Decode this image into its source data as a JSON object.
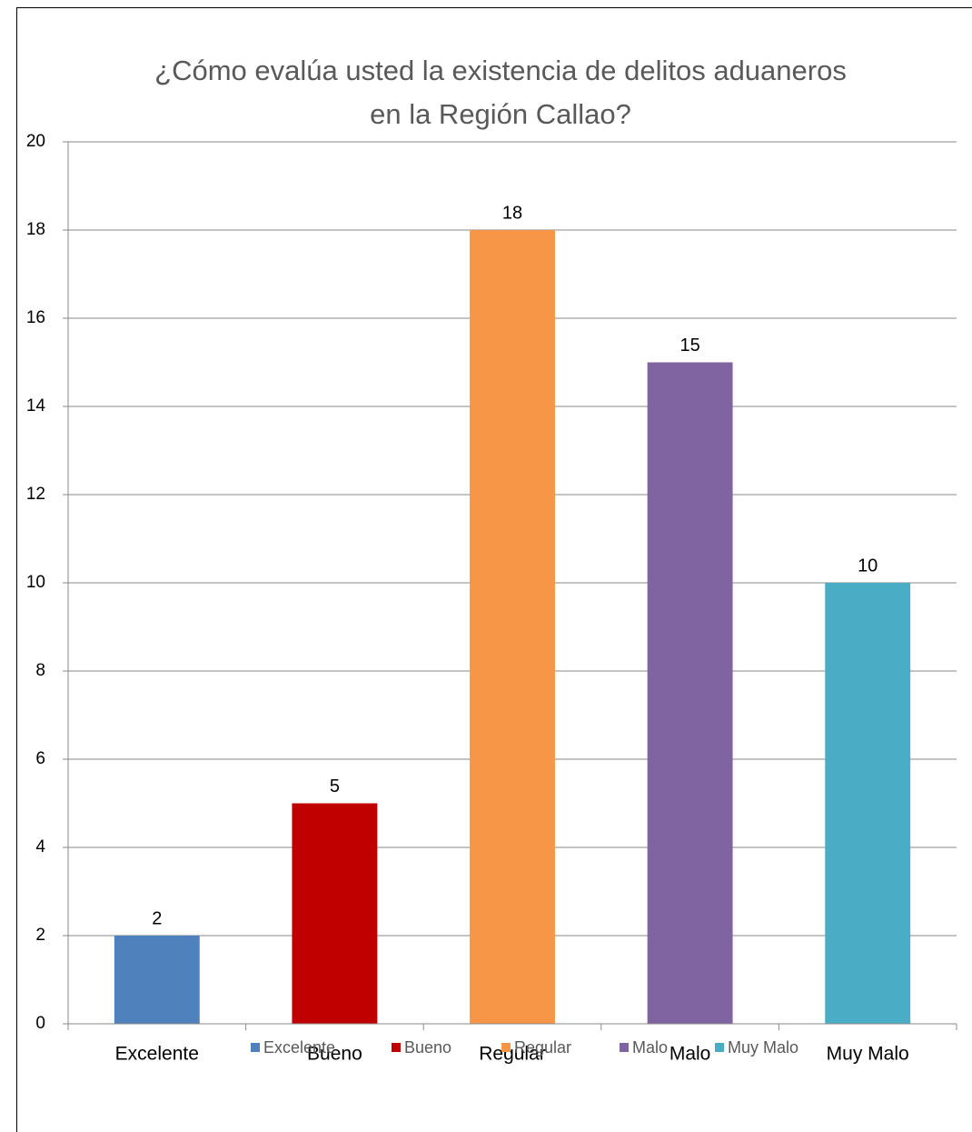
{
  "chart_data": {
    "type": "bar",
    "title": [
      "¿Cómo evalúa usted  la existencia de delitos aduaneros",
      "en la Región Callao?"
    ],
    "categories": [
      "Excelente",
      "Bueno",
      "Regular",
      "Malo",
      "Muy Malo"
    ],
    "values": [
      2,
      5,
      18,
      15,
      10
    ],
    "colors": [
      "#4f81bd",
      "#c00000",
      "#f79646",
      "#8064a2",
      "#4bacc6"
    ],
    "ylim": [
      0,
      20
    ],
    "yticks": [
      0,
      2,
      4,
      6,
      8,
      10,
      12,
      14,
      16,
      18,
      20
    ],
    "grid": true,
    "legend": "bottom"
  }
}
